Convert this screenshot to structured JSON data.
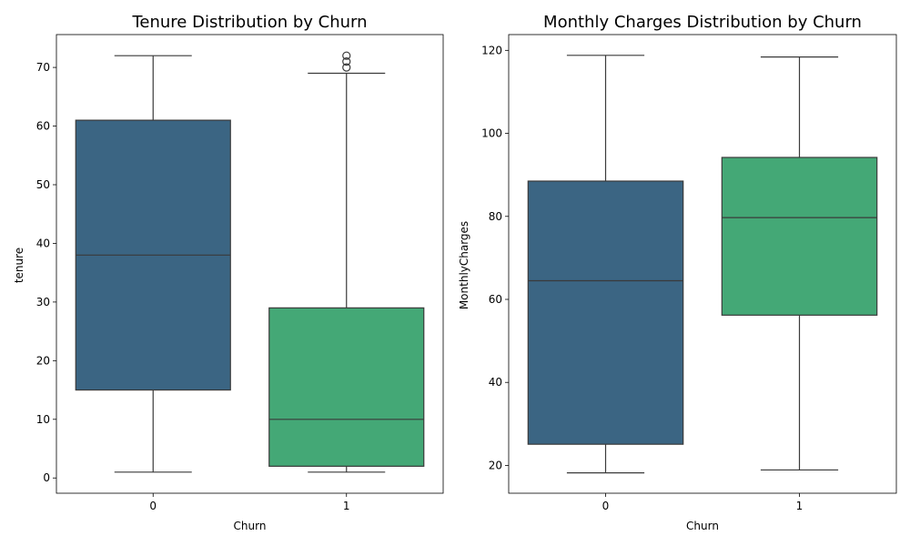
{
  "chart_data": [
    {
      "type": "box",
      "title": "Tenure Distribution by Churn",
      "xlabel": "Churn",
      "ylabel": "tenure",
      "categories": [
        "0",
        "1"
      ],
      "colors": [
        "#3b6583",
        "#44a876"
      ],
      "ylim": [
        -2.6,
        75.6
      ],
      "yticks": [
        0,
        10,
        20,
        30,
        40,
        50,
        60,
        70
      ],
      "boxes": [
        {
          "category": "0",
          "whisker_low": 1,
          "q1": 15,
          "median": 38,
          "q3": 61,
          "whisker_high": 72,
          "outliers": []
        },
        {
          "category": "1",
          "whisker_low": 1,
          "q1": 2,
          "median": 10,
          "q3": 29,
          "whisker_high": 69,
          "outliers": [
            70,
            71,
            72
          ]
        }
      ]
    },
    {
      "type": "box",
      "title": "Monthly Charges Distribution by Churn",
      "xlabel": "Churn",
      "ylabel": "MonthlyCharges",
      "categories": [
        "0",
        "1"
      ],
      "colors": [
        "#3b6583",
        "#44a876"
      ],
      "ylim": [
        13.3,
        123.8
      ],
      "yticks": [
        20,
        40,
        60,
        80,
        100,
        120
      ],
      "boxes": [
        {
          "category": "0",
          "whisker_low": 18.2,
          "q1": 25.1,
          "median": 64.5,
          "q3": 88.5,
          "whisker_high": 118.8,
          "outliers": []
        },
        {
          "category": "1",
          "whisker_low": 18.9,
          "q1": 56.2,
          "median": 79.7,
          "q3": 94.2,
          "whisker_high": 118.4,
          "outliers": []
        }
      ]
    }
  ]
}
